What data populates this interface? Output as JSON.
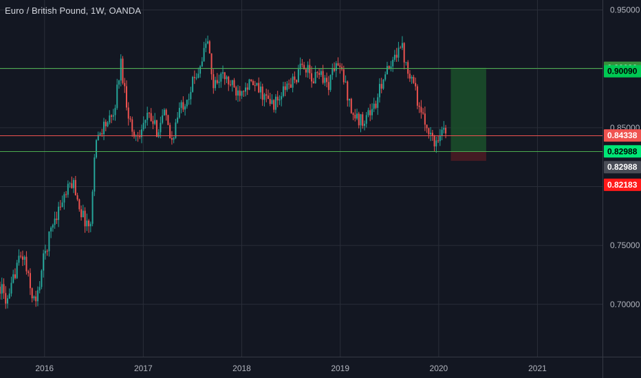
{
  "title": "Euro / British Pound, 1W, OANDA",
  "colors": {
    "background": "#131722",
    "grid": "#2a2e39",
    "axis_text": "#b2b5be",
    "up_candle": "#26a69a",
    "down_candle": "#ef5350",
    "green_line": "#4caf50",
    "red_line": "#ef5350",
    "profit_zone": "#1b4d2a",
    "loss_zone": "#4a1c24"
  },
  "chart_data": {
    "type": "candlestick",
    "symbol": "EURGBP",
    "timeframe": "1W",
    "broker": "OANDA",
    "ylim": [
      0.6555,
      0.9585
    ],
    "xlim": [
      "2015-07-20",
      "2021-08-30"
    ],
    "y_ticks": [
      "0.70000",
      "0.75000",
      "0.80000",
      "0.85000",
      "0.90000",
      "0.95000"
    ],
    "x_ticks": [
      "2016",
      "2017",
      "2018",
      "2019",
      "2020",
      "2021"
    ],
    "grid": true,
    "anchors": [
      [
        "2015-07-20",
        0.715
      ],
      [
        "2015-08-20",
        0.7
      ],
      [
        "2015-09-20",
        0.735
      ],
      [
        "2015-10-15",
        0.742
      ],
      [
        "2015-11-10",
        0.712
      ],
      [
        "2015-12-01",
        0.7
      ],
      [
        "2015-12-25",
        0.735
      ],
      [
        "2016-02-01",
        0.77
      ],
      [
        "2016-03-01",
        0.785
      ],
      [
        "2016-04-15",
        0.805
      ],
      [
        "2016-05-20",
        0.775
      ],
      [
        "2016-06-20",
        0.765
      ],
      [
        "2016-07-05",
        0.835
      ],
      [
        "2016-08-05",
        0.852
      ],
      [
        "2016-09-10",
        0.857
      ],
      [
        "2016-10-10",
        0.905
      ],
      [
        "2016-11-01",
        0.87
      ],
      [
        "2016-11-25",
        0.842
      ],
      [
        "2016-12-20",
        0.848
      ],
      [
        "2017-01-20",
        0.86
      ],
      [
        "2017-02-20",
        0.848
      ],
      [
        "2017-03-20",
        0.862
      ],
      [
        "2017-04-15",
        0.838
      ],
      [
        "2017-05-15",
        0.865
      ],
      [
        "2017-06-20",
        0.88
      ],
      [
        "2017-08-01",
        0.905
      ],
      [
        "2017-08-28",
        0.925
      ],
      [
        "2017-09-15",
        0.885
      ],
      [
        "2017-10-15",
        0.895
      ],
      [
        "2017-11-15",
        0.888
      ],
      [
        "2017-12-15",
        0.88
      ],
      [
        "2018-01-15",
        0.888
      ],
      [
        "2018-02-15",
        0.885
      ],
      [
        "2018-03-15",
        0.88
      ],
      [
        "2018-04-15",
        0.87
      ],
      [
        "2018-05-15",
        0.872
      ],
      [
        "2018-06-15",
        0.885
      ],
      [
        "2018-07-15",
        0.89
      ],
      [
        "2018-08-20",
        0.905
      ],
      [
        "2018-09-20",
        0.888
      ],
      [
        "2018-10-15",
        0.9
      ],
      [
        "2018-11-15",
        0.885
      ],
      [
        "2018-12-15",
        0.905
      ],
      [
        "2019-01-10",
        0.895
      ],
      [
        "2019-02-15",
        0.862
      ],
      [
        "2019-03-15",
        0.855
      ],
      [
        "2019-04-15",
        0.862
      ],
      [
        "2019-05-15",
        0.87
      ],
      [
        "2019-06-10",
        0.895
      ],
      [
        "2019-07-10",
        0.9
      ],
      [
        "2019-08-10",
        0.925
      ],
      [
        "2019-09-01",
        0.905
      ],
      [
        "2019-10-01",
        0.89
      ],
      [
        "2019-10-25",
        0.86
      ],
      [
        "2019-11-25",
        0.85
      ],
      [
        "2019-12-15",
        0.835
      ],
      [
        "2020-01-10",
        0.85
      ],
      [
        "2020-01-27",
        0.845
      ]
    ],
    "horizontal_lines": [
      {
        "price": 0.9009,
        "color": "#4caf50"
      },
      {
        "price": 0.84338,
        "color": "#ef5350"
      },
      {
        "price": 0.82988,
        "color": "#4caf50"
      }
    ],
    "position": {
      "entry": 0.82988,
      "target": 0.9009,
      "stop": 0.82183,
      "start": "2020-02-15",
      "end": "2020-06-25"
    },
    "price_labels": [
      {
        "text": "0.90090",
        "price": 0.9009,
        "bg": "#388e3c",
        "fg": "#ffffff"
      },
      {
        "text": "0.90090",
        "price": 0.898,
        "bg": "#00c853",
        "fg": "#000000"
      },
      {
        "text": "0.84338",
        "price": 0.84338,
        "bg": "#ef5350",
        "fg": "#ffffff"
      },
      {
        "text": "0.82988",
        "price": 0.82988,
        "bg": "#00e676",
        "fg": "#000000"
      },
      {
        "text": "0.82988",
        "price": 0.8165,
        "bg": "#4a4d57",
        "fg": "#ffffff"
      },
      {
        "text": "0.82183",
        "price": 0.8015,
        "bg": "#ff1a1a",
        "fg": "#ffffff"
      }
    ]
  }
}
